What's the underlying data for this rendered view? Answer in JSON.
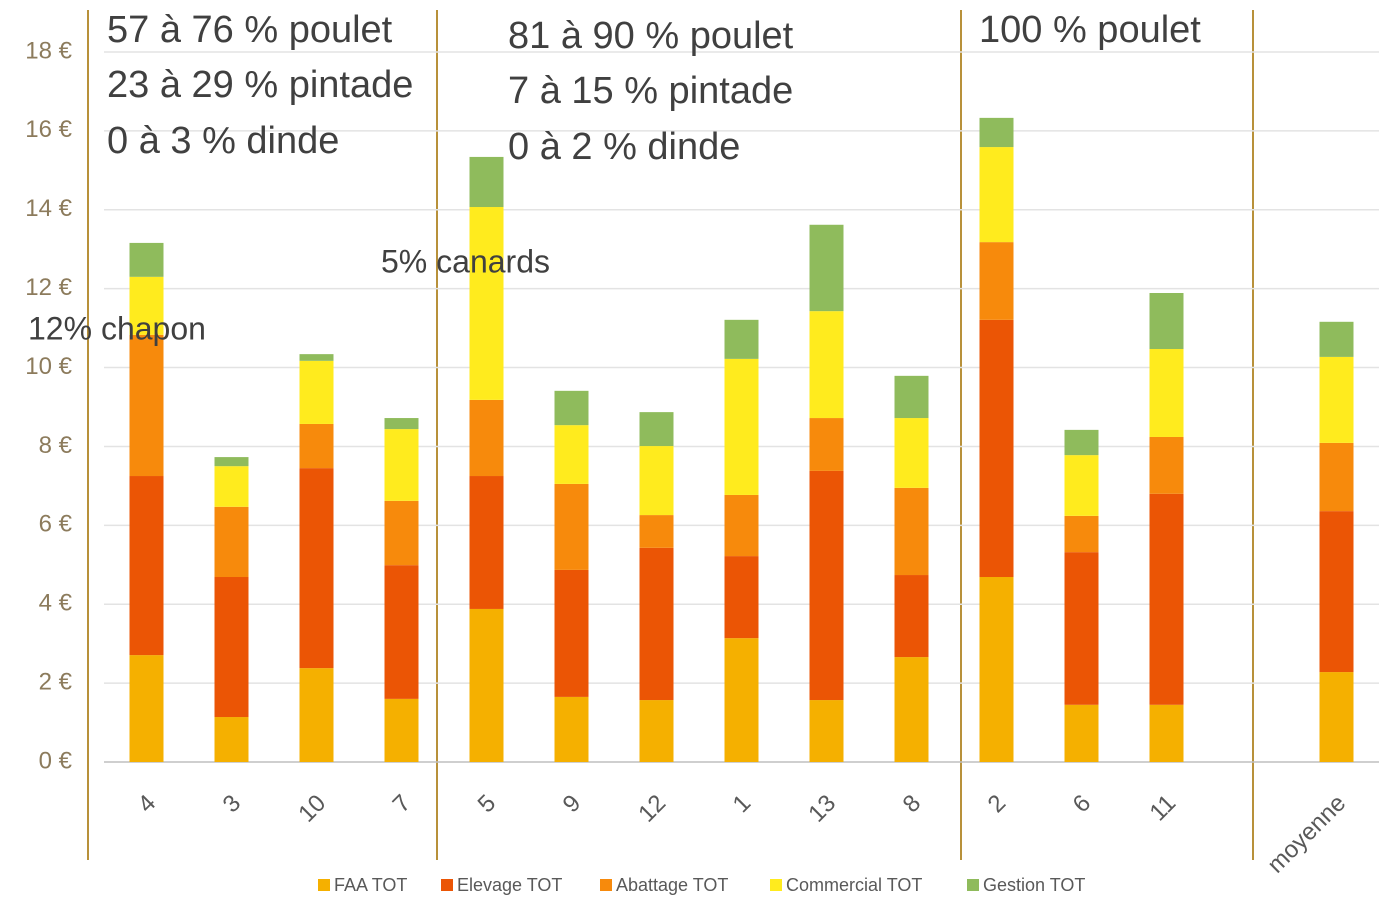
{
  "chart_data": {
    "type": "stacked_bar",
    "categories": [
      "4",
      "3",
      "10",
      "7",
      "5",
      "9",
      "12",
      "1",
      "13",
      "8",
      "2",
      "6",
      "11",
      null,
      "moyenne"
    ],
    "series": [
      {
        "name": "FAA TOT",
        "color": "#f5b000",
        "values": [
          2.71,
          1.14,
          2.38,
          1.6,
          3.88,
          1.65,
          1.57,
          3.14,
          1.57,
          2.66,
          4.69,
          1.45,
          1.45,
          null,
          2.28
        ]
      },
      {
        "name": "Elevage TOT",
        "color": "#eb5505",
        "values": [
          4.54,
          3.55,
          5.07,
          3.39,
          3.37,
          3.22,
          3.86,
          2.08,
          5.81,
          2.08,
          6.52,
          3.87,
          5.35,
          null,
          4.08
        ]
      },
      {
        "name": "Abattage TOT",
        "color": "#f78a0c",
        "values": [
          3.58,
          1.78,
          1.12,
          1.63,
          1.93,
          2.18,
          0.83,
          1.55,
          1.34,
          2.21,
          1.97,
          0.92,
          1.44,
          null,
          1.73
        ]
      },
      {
        "name": "Commercial TOT",
        "color": "#ffeb1e",
        "values": [
          1.47,
          1.03,
          1.6,
          1.82,
          4.89,
          1.49,
          1.75,
          3.45,
          2.71,
          1.77,
          2.41,
          1.54,
          2.23,
          null,
          2.18
        ]
      },
      {
        "name": "Gestion TOT",
        "color": "#8fbb5c",
        "values": [
          0.86,
          0.23,
          0.17,
          0.28,
          1.27,
          0.87,
          0.86,
          0.99,
          2.19,
          1.07,
          0.74,
          0.64,
          1.42,
          null,
          0.89
        ]
      }
    ],
    "ylim": [
      0,
      18
    ],
    "yticks": [
      {
        "value": 0,
        "label": "0 €"
      },
      {
        "value": 2,
        "label": "2 €"
      },
      {
        "value": 4,
        "label": "4 €"
      },
      {
        "value": 6,
        "label": "6 €"
      },
      {
        "value": 8,
        "label": "8 €"
      },
      {
        "value": 10,
        "label": "10 €"
      },
      {
        "value": 12,
        "label": "12 €"
      },
      {
        "value": 14,
        "label": "14 €"
      },
      {
        "value": 16,
        "label": "16 €"
      },
      {
        "value": 18,
        "label": "18 €"
      }
    ],
    "grid": true,
    "legend": "bottom",
    "annotations": [
      "57 à 76 % poulet",
      "23 à 29 % pintade",
      "0 à 3 % dinde",
      "81 à 90 % poulet",
      "7 à 15 % pintade",
      "0 à 2 % dinde",
      "100 % poulet",
      "5% canards",
      "12% chapon"
    ]
  }
}
